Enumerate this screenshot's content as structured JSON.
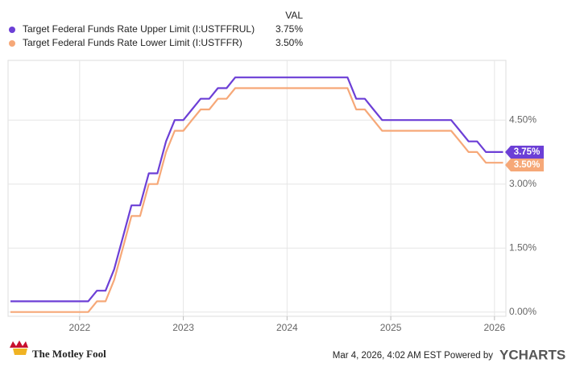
{
  "chart_data": {
    "type": "line",
    "value_header": "VAL",
    "x": [
      2021.333,
      2022.083,
      2022.167,
      2022.25,
      2022.333,
      2022.417,
      2022.5,
      2022.583,
      2022.667,
      2022.75,
      2022.833,
      2022.917,
      2023.0,
      2023.083,
      2023.167,
      2023.25,
      2023.333,
      2023.417,
      2023.5,
      2024.583,
      2024.667,
      2024.75,
      2024.833,
      2024.917,
      2025.583,
      2025.667,
      2025.75,
      2025.833,
      2025.917,
      2026.083
    ],
    "series": [
      {
        "name": "Target Federal Funds Rate Upper Limit (I:USTFFRUL)",
        "color": "#6c3fd6",
        "latest": {
          "value": 3.75,
          "label": "3.75%"
        },
        "values": [
          0.25,
          0.25,
          0.5,
          0.5,
          1.0,
          1.75,
          2.5,
          2.5,
          3.25,
          3.25,
          4.0,
          4.5,
          4.5,
          4.75,
          5.0,
          5.0,
          5.25,
          5.25,
          5.5,
          5.5,
          5.0,
          5.0,
          4.75,
          4.5,
          4.5,
          4.25,
          4.0,
          4.0,
          3.75,
          3.75
        ]
      },
      {
        "name": "Target Federal Funds Rate Lower Limit (I:USTFFR)",
        "color": "#f6a878",
        "latest": {
          "value": 3.5,
          "label": "3.50%"
        },
        "values": [
          0.0,
          0.0,
          0.25,
          0.25,
          0.75,
          1.5,
          2.25,
          2.25,
          3.0,
          3.0,
          3.75,
          4.25,
          4.25,
          4.5,
          4.75,
          4.75,
          5.0,
          5.0,
          5.25,
          5.25,
          4.75,
          4.75,
          4.5,
          4.25,
          4.25,
          4.0,
          3.75,
          3.75,
          3.5,
          3.5
        ]
      }
    ],
    "xlim": [
      2021.31,
      2026.11
    ],
    "xticks": [
      2022,
      2023,
      2024,
      2025,
      2026
    ],
    "ylim": [
      -0.1,
      5.9
    ],
    "yticks": [
      {
        "value": 0,
        "label": "0.00%"
      },
      {
        "value": 1.5,
        "label": "1.50%"
      },
      {
        "value": 3,
        "label": "3.00%"
      },
      {
        "value": 4.5,
        "label": "4.50%"
      }
    ],
    "grid": true,
    "source_note": "Mar 4, 2026, 4:02 AM EST Powered by",
    "provider": "YCHARTS",
    "brand": "The Motley Fool"
  }
}
